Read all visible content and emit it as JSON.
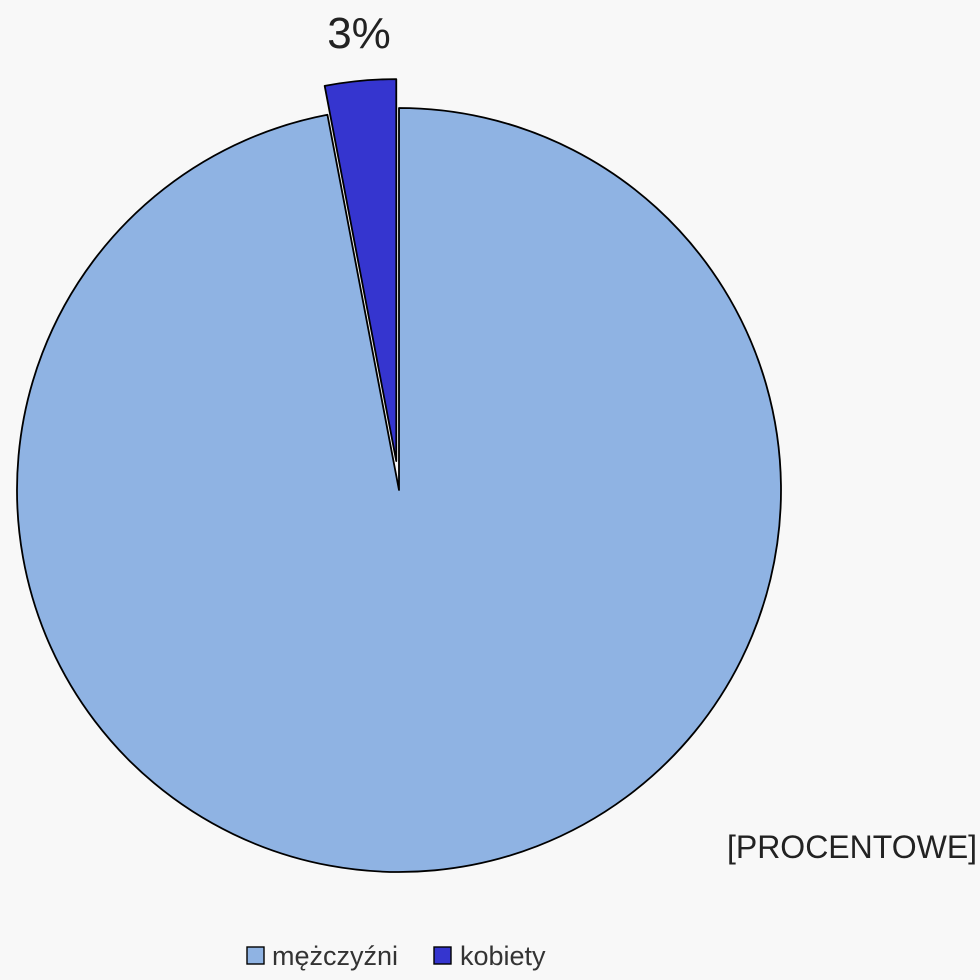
{
  "chart_data": {
    "type": "pie",
    "categories": [
      "mężczyźni",
      "kobiety"
    ],
    "values": [
      97,
      3
    ],
    "unit": "%",
    "data_labels": [
      "[PROCENTOWE]",
      "3%"
    ],
    "legend_position": "bottom",
    "exploded_slices": [
      "kobiety"
    ],
    "colors": {
      "mężczyźni": "#8fb3e3",
      "kobiety": "#3535cf",
      "stroke": "#000000",
      "background": "#f8f8f8"
    }
  }
}
